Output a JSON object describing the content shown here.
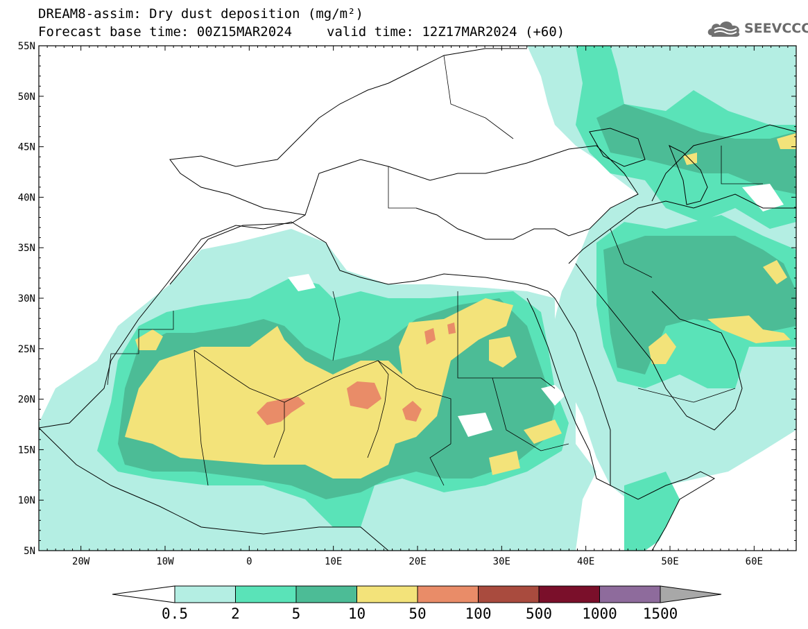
{
  "header": {
    "line1": "DREAM8-assim: Dry dust deposition (mg/m²)",
    "line2_left": "Forecast base time: 00Z15MAR2024",
    "line2_right": "valid time: 12Z17MAR2024 (+60)",
    "logo_text": "SEEVCCC",
    "logo_icon": "cloud-icon"
  },
  "map": {
    "lon_range": [
      -25,
      65
    ],
    "lat_range": [
      5,
      55
    ],
    "lat_labels": [
      "55N",
      "50N",
      "45N",
      "40N",
      "35N",
      "30N",
      "25N",
      "20N",
      "15N",
      "10N",
      "5N"
    ],
    "lon_labels": [
      "20W",
      "10W",
      "0",
      "10E",
      "20E",
      "30E",
      "40E",
      "50E",
      "60E"
    ]
  },
  "colorbar": {
    "labels": [
      "0.5",
      "2",
      "5",
      "10",
      "50",
      "100",
      "500",
      "1000",
      "1500"
    ],
    "colors": [
      "#b4eee3",
      "#5ae3b8",
      "#4cbc96",
      "#f3e37a",
      "#e98c68",
      "#a94b3e",
      "#7a0f2a",
      "#8e6b9c",
      "#a8a8a8"
    ]
  }
}
